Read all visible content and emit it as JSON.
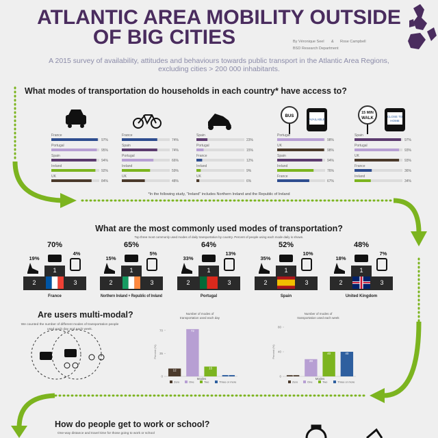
{
  "header": {
    "title_lines": [
      "ATLANTIC AREA MOBILITY OUTSIDE",
      "OF BIG CITIES"
    ],
    "authors": [
      "By Véronique Seel",
      "&",
      "Rose Campbell"
    ],
    "department": "BSD Research Department",
    "subtitle_lines": [
      "A 2015 survey of availability, attitudes and behaviours towards public transport in the Atlantic Area Regions,",
      "excluding cities > 200 000 inhabitants."
    ]
  },
  "access": {
    "question": "What modes of transportation do households in each country* have access to?",
    "footnote": "*In the following study, \"Ireland\" includes Northern Ireland and the Republic of Ireland",
    "country_colors": {
      "France": "#2e4d8f",
      "Portugal": "#b79fd3",
      "Spain": "#5c3b6e",
      "Ireland": "#7cb41f",
      "UK": "#4b3a2b"
    },
    "xlim": [
      0,
      100
    ],
    "panels": [
      {
        "countries": [
          "France",
          "Portugal",
          "Spain",
          "Ireland",
          "UK"
        ],
        "values": [
          97,
          95,
          94,
          92,
          84
        ],
        "value_labels": [
          "97%",
          "95%",
          "94%",
          "92%",
          "84%"
        ]
      },
      {
        "countries": [
          "France",
          "Spain",
          "Portugal",
          "Ireland",
          "UK"
        ],
        "values": [
          74,
          74,
          66,
          59,
          48
        ],
        "value_labels": [
          "74%",
          "74%",
          "66%",
          "59%",
          "48%"
        ]
      },
      {
        "countries": [
          "Spain",
          "Portugal",
          "France",
          "Ireland",
          "UK"
        ],
        "values": [
          23,
          15,
          12,
          9,
          6
        ],
        "value_labels": [
          "23%",
          "15%",
          "12%",
          "9%",
          "6%"
        ]
      },
      {
        "icon_labels": [
          "BUS",
          "AVAILABLE"
        ],
        "countries": [
          "Portugal",
          "UK",
          "Spain",
          "Ireland",
          "France"
        ],
        "values": [
          98,
          98,
          94,
          76,
          67
        ],
        "value_labels": [
          "98%",
          "98%",
          "94%",
          "76%",
          "67%"
        ]
      },
      {
        "icon_labels": [
          "15 MIN",
          "WALK",
          "CLOSE TO",
          "HOME"
        ],
        "countries": [
          "Spain",
          "Portugal",
          "UK",
          "France",
          "Ireland"
        ],
        "values": [
          97,
          93,
          93,
          36,
          34
        ],
        "value_labels": [
          "97%",
          "93%",
          "93%",
          "36%",
          "34%"
        ]
      }
    ]
  },
  "common": {
    "question": "What are the most commonly used modes of transportation?",
    "subtitle": "Top three most commonly used modes of daily transportation by country. Percent of people using each mode daily is shown.",
    "places": [
      "1",
      "2",
      "3"
    ],
    "podiums": [
      {
        "country": "France",
        "values": [
          70,
          19,
          4
        ],
        "value_labels": [
          "70%",
          "19%",
          "4%"
        ]
      },
      {
        "country": "Northern Ireland + Republic of Ireland",
        "values": [
          65,
          15,
          5
        ],
        "value_labels": [
          "65%",
          "15%",
          "5%"
        ]
      },
      {
        "country": "Portugal",
        "values": [
          64,
          33,
          13
        ],
        "value_labels": [
          "64%",
          "33%",
          "13%"
        ]
      },
      {
        "country": "Spain",
        "values": [
          52,
          35,
          10
        ],
        "value_labels": [
          "52%",
          "35%",
          "10%"
        ]
      },
      {
        "country": "United Kingdom",
        "values": [
          48,
          18,
          7
        ],
        "value_labels": [
          "48%",
          "18%",
          "7%"
        ]
      }
    ]
  },
  "multimodal": {
    "question": "Are users multi-modal?",
    "text_lines": [
      "We counted the number of different modes of transportation people",
      "used each day and each week."
    ],
    "charts": [
      {
        "type": "bar",
        "title_lines": [
          "Number of modes of",
          "transportation used each day"
        ],
        "ylabel": "Percent (%)",
        "xlabel": "Modes",
        "categories": [
          "Zero",
          "One",
          "Two",
          "Three or more"
        ],
        "colors": [
          "#4b3a2b",
          "#b79fd3",
          "#7cb41f",
          "#2e5f9f"
        ],
        "values": [
          12,
          72,
          15,
          2
        ],
        "ylim": [
          0,
          75
        ],
        "yticks": [
          0,
          35,
          70
        ]
      },
      {
        "type": "bar",
        "title_lines": [
          "Number of modes of",
          "transportation used each week"
        ],
        "ylabel": "Percent (%)",
        "xlabel": "Modes",
        "categories": [
          "Zero",
          "One",
          "Two",
          "Three or more"
        ],
        "colors": [
          "#4b3a2b",
          "#b79fd3",
          "#7cb41f",
          "#2e5f9f"
        ],
        "values": [
          2,
          28,
          40,
          40
        ],
        "ylim": [
          0,
          80
        ],
        "yticks": [
          0,
          40,
          80
        ]
      }
    ]
  },
  "commute": {
    "question": "How do people get to work or school?",
    "subtitle": "One-way distance and travel time for those going to work or school"
  }
}
